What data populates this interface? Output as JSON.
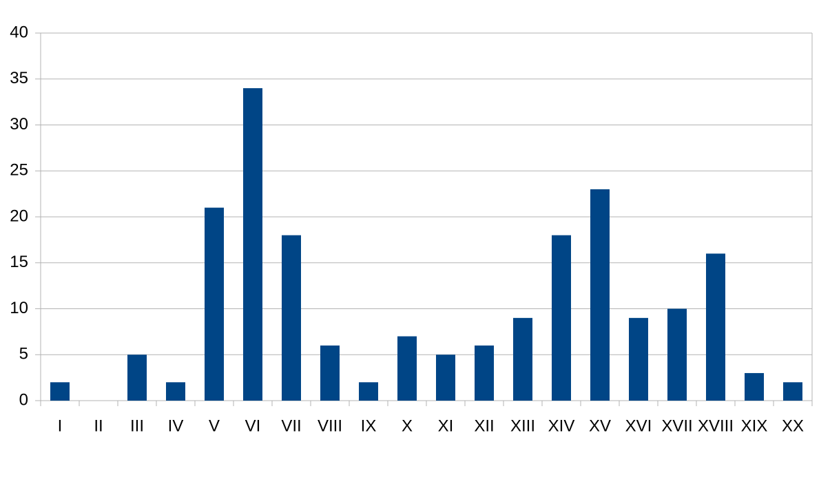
{
  "chart_data": {
    "type": "bar",
    "categories": [
      "I",
      "II",
      "III",
      "IV",
      "V",
      "VI",
      "VII",
      "VIII",
      "IX",
      "X",
      "XI",
      "XII",
      "XIII",
      "XIV",
      "XV",
      "XVI",
      "XVII",
      "XVIII",
      "XIX",
      "XX"
    ],
    "values": [
      2,
      0,
      5,
      2,
      21,
      34,
      18,
      6,
      2,
      7,
      5,
      6,
      9,
      18,
      23,
      9,
      10,
      16,
      3,
      2
    ],
    "color": "#004586",
    "ylim": [
      0,
      40
    ],
    "yticks": [
      0,
      5,
      10,
      15,
      20,
      25,
      30,
      35,
      40
    ],
    "grid": true
  }
}
